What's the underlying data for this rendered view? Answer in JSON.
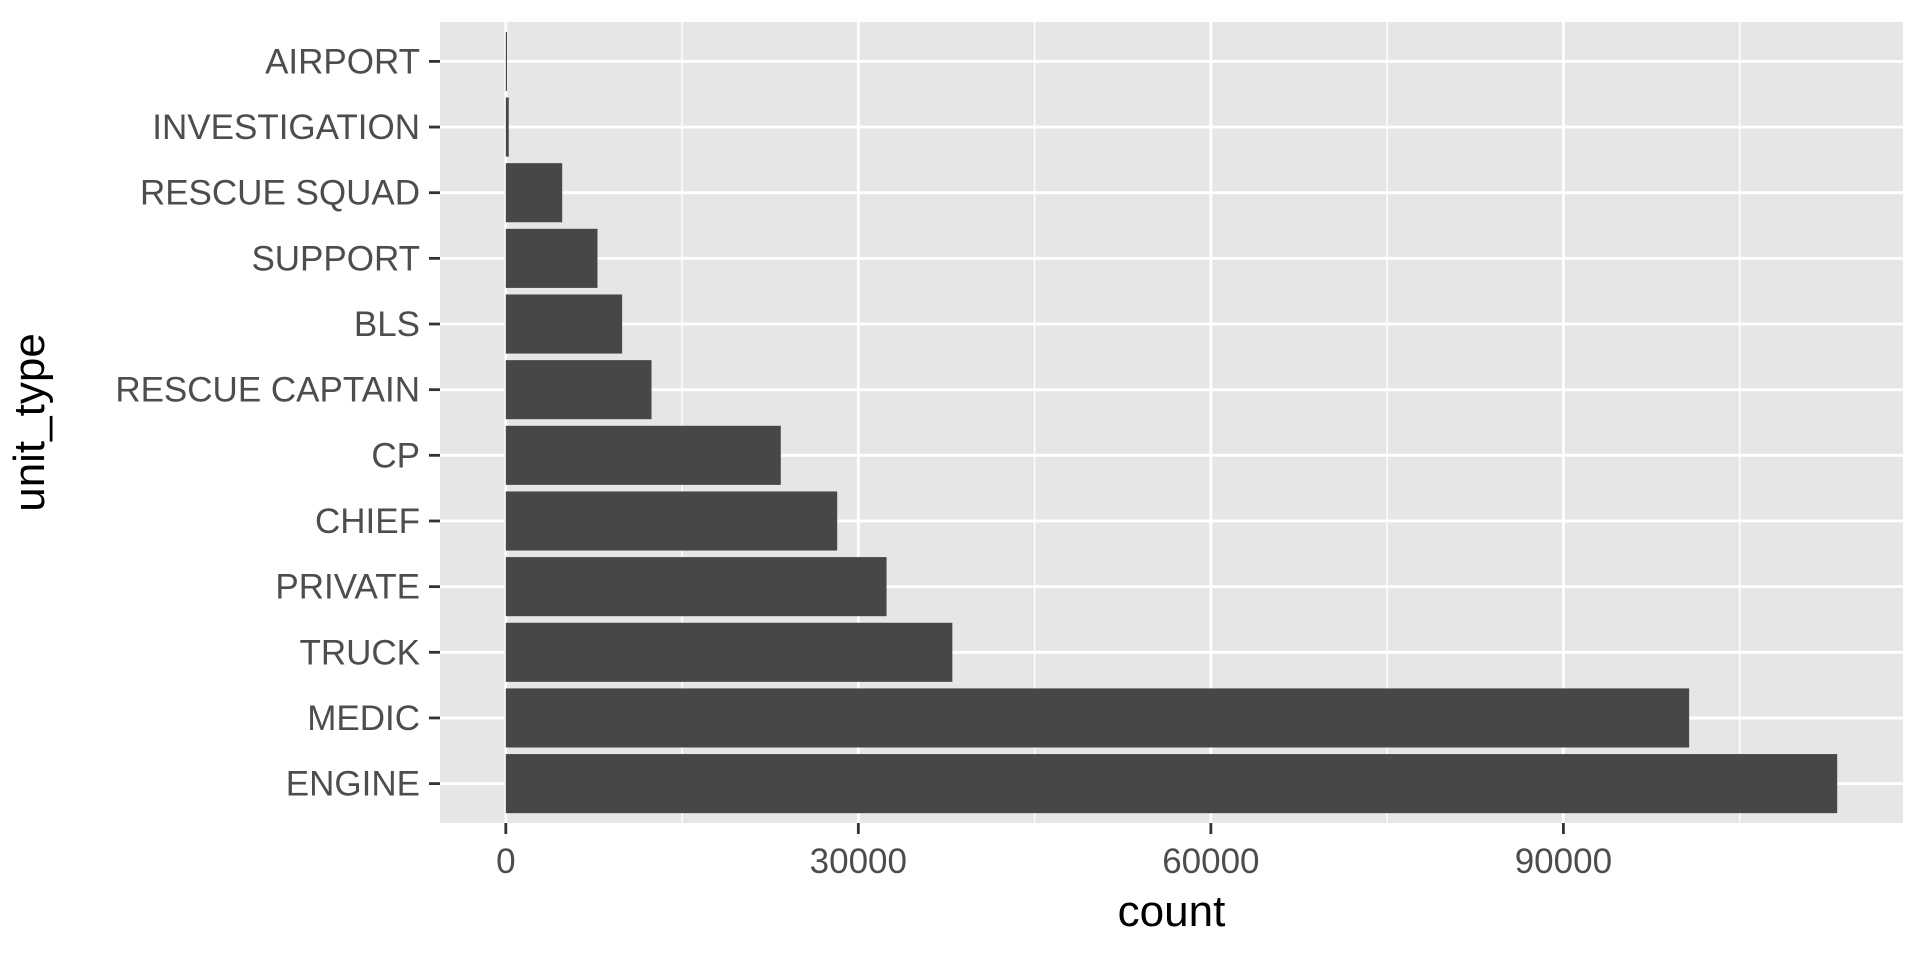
{
  "chart_data": {
    "type": "bar",
    "orientation": "horizontal",
    "xlabel": "count",
    "ylabel": "unit_type",
    "categories": [
      "AIRPORT",
      "INVESTIGATION",
      "RESCUE SQUAD",
      "SUPPORT",
      "BLS",
      "RESCUE CAPTAIN",
      "CP",
      "CHIEF",
      "PRIVATE",
      "TRUCK",
      "MEDIC",
      "ENGINE"
    ],
    "values": [
      60,
      250,
      4800,
      7800,
      9900,
      12400,
      23400,
      28200,
      32400,
      38000,
      100700,
      113300
    ],
    "xlim": [
      -5600,
      118900
    ],
    "xticks": [
      0,
      30000,
      60000,
      90000
    ],
    "xtick_labels": [
      "0",
      "30000",
      "60000",
      "90000"
    ],
    "grid": true,
    "colors": {
      "bar": "#474747",
      "panel": "#e6e6e6",
      "grid": "#ffffff",
      "tick_text": "#4d4d4d",
      "tick_mark": "#333333"
    }
  }
}
